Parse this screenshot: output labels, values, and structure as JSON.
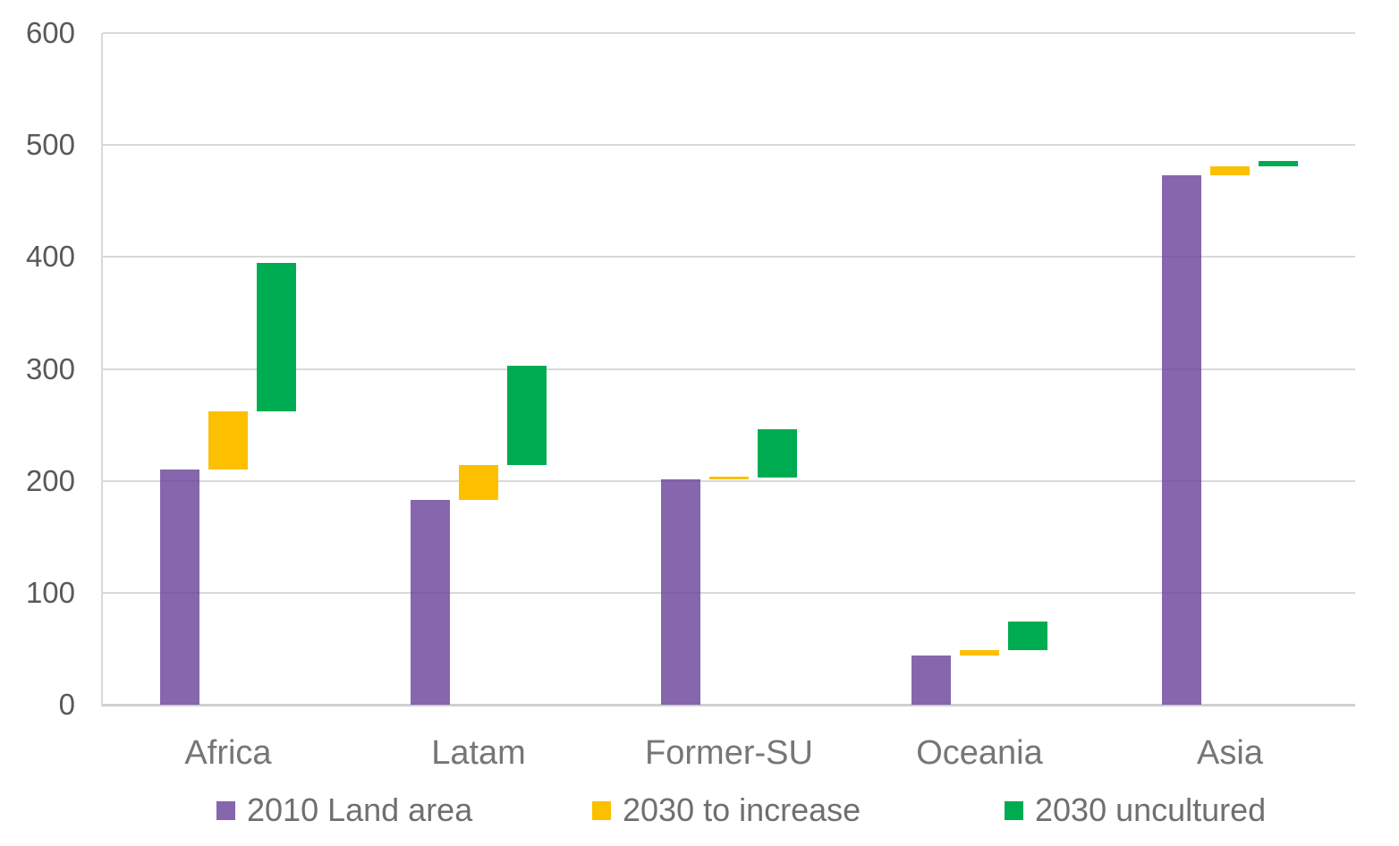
{
  "chart_data": {
    "type": "bar",
    "subtype": "floating-column-waterfall",
    "title": "",
    "xlabel": "",
    "ylabel": "",
    "categories": [
      "Africa",
      "Latam",
      "Former-SU",
      "Oceania",
      "Asia"
    ],
    "series": [
      {
        "name": "2010 Land area",
        "color": "#8667AD",
        "fill": "rgba(104,65,153,0.8)",
        "ranges": [
          [
            0,
            210
          ],
          [
            0,
            183
          ],
          [
            0,
            201
          ],
          [
            0,
            44
          ],
          [
            0,
            473
          ]
        ]
      },
      {
        "name": "2030 to increase",
        "color": "#FCC000",
        "fill": "#FCC000",
        "ranges": [
          [
            210,
            262
          ],
          [
            183,
            214
          ],
          [
            201,
            204
          ],
          [
            44,
            49
          ],
          [
            473,
            481
          ]
        ]
      },
      {
        "name": "2030 uncultured",
        "color": "#00AC52",
        "fill": "#00AC52",
        "ranges": [
          [
            262,
            395
          ],
          [
            214,
            303
          ],
          [
            203,
            246
          ],
          [
            49,
            74
          ],
          [
            481,
            486
          ]
        ]
      }
    ],
    "ylim": [
      0,
      600
    ],
    "yticks": [
      0,
      100,
      200,
      300,
      400,
      500,
      600
    ],
    "grid": true,
    "legend_position": "bottom"
  },
  "style": {
    "background": "#ffffff",
    "gridline_color": "#d9d9d9",
    "baseline_color": "#cfcfcf",
    "axis_line_color": "#d9d9d9",
    "tick_label_color": "#595959",
    "category_label_color": "#767676",
    "legend_label_color": "#6f6f6f"
  }
}
